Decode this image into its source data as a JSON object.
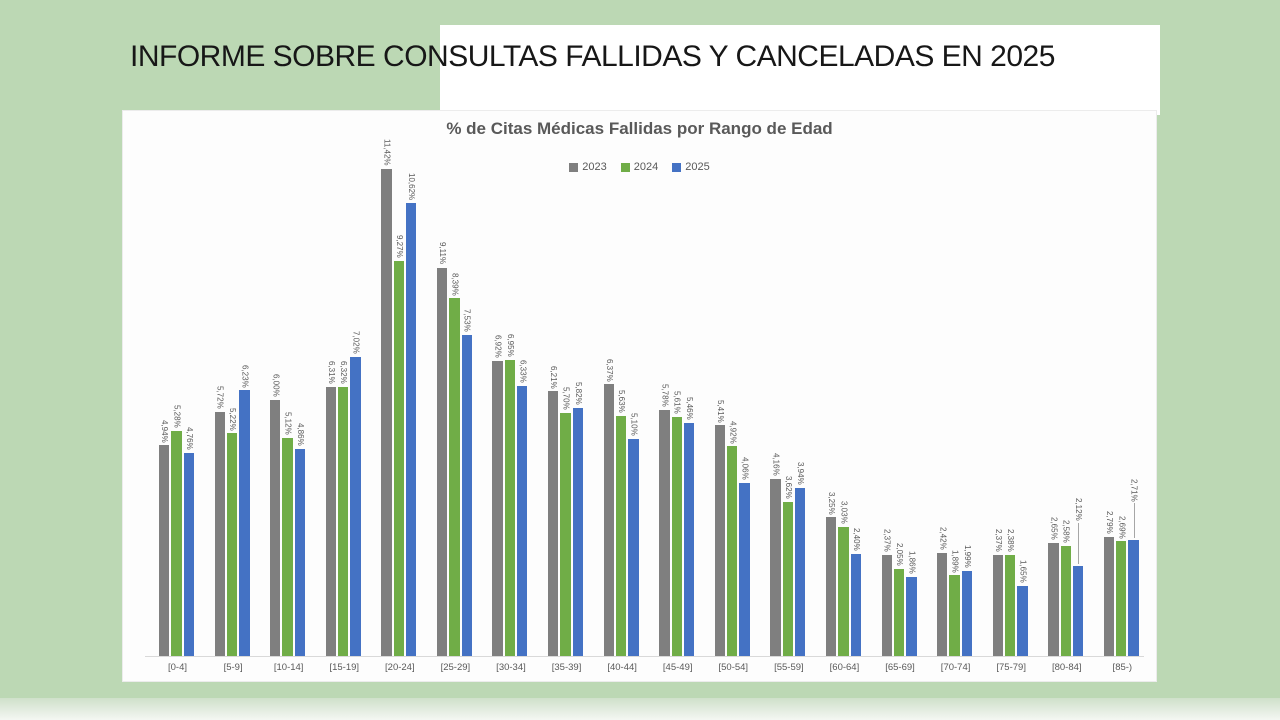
{
  "slide": {
    "title": "INFORME SOBRE CONSULTAS FALLIDAS Y CANCELADAS EN 2025"
  },
  "chart_data": {
    "type": "bar",
    "title": "% de Citas Médicas Fallidas por Rango de Edad",
    "categories": [
      "[0-4]",
      "[5-9]",
      "[10-14]",
      "[15-19]",
      "[20-24]",
      "[25-29]",
      "[30-34]",
      "[35-39]",
      "[40-44]",
      "[45-49]",
      "[50-54]",
      "[55-59]",
      "[60-64]",
      "[65-69]",
      "[70-74]",
      "[75-79]",
      "[80-84]",
      "[85-)"
    ],
    "series": [
      {
        "name": "2023",
        "color": "#7f7f7f",
        "values": [
          4.94,
          5.72,
          6.0,
          6.31,
          11.42,
          9.11,
          6.92,
          6.21,
          6.37,
          5.78,
          5.41,
          4.16,
          3.25,
          2.37,
          2.42,
          2.37,
          2.65,
          2.79
        ],
        "labels": [
          "4,94%",
          "5,72%",
          "6,00%",
          "6,31%",
          "11,42%",
          "9,11%",
          "6,92%",
          "6,21%",
          "6,37%",
          "5,78%",
          "5,41%",
          "4,16%",
          "3,25%",
          "2,37%",
          "2,42%",
          "2,37%",
          "2,65%",
          "2,79%"
        ]
      },
      {
        "name": "2024",
        "color": "#70ad47",
        "values": [
          5.28,
          5.22,
          5.12,
          6.32,
          9.27,
          8.39,
          6.95,
          5.7,
          5.63,
          5.61,
          4.92,
          3.62,
          3.03,
          2.05,
          1.89,
          2.38,
          2.58,
          2.69
        ],
        "labels": [
          "5,28%",
          "5,22%",
          "5,12%",
          "6,32%",
          "9,27%",
          "8,39%",
          "6,95%",
          "5,70%",
          "5,63%",
          "5,61%",
          "4,92%",
          "3,62%",
          "3,03%",
          "2,05%",
          "1,89%",
          "2,38%",
          "2,58%",
          "2,69%"
        ]
      },
      {
        "name": "2025",
        "color": "#4472c4",
        "values": [
          4.76,
          6.23,
          4.86,
          7.02,
          10.62,
          7.53,
          6.33,
          5.82,
          5.1,
          5.46,
          4.06,
          3.94,
          2.4,
          1.86,
          1.99,
          1.65,
          2.12,
          2.71
        ],
        "labels": [
          "4,76%",
          "6,23%",
          "4,86%",
          "7,02%",
          "10,62%",
          "7,53%",
          "6,33%",
          "5,82%",
          "5,10%",
          "5,46%",
          "4,06%",
          "3,94%",
          "2,40%",
          "1,86%",
          "1,99%",
          "1,65%",
          "2,12%",
          "2,71%"
        ]
      }
    ],
    "ylim": [
      0,
      11.42
    ],
    "grid": false,
    "legend_position": "top-center",
    "value_labels": "rotated-vertical",
    "leader_lines": [
      {
        "series": 2,
        "category": 16,
        "lift": 42
      },
      {
        "series": 2,
        "category": 17,
        "lift": 36
      }
    ]
  },
  "colors": {
    "background": "#bcd8b4",
    "panel": "#fdfdfd",
    "text_primary": "#171717",
    "text_chart": "#595959",
    "axis_line": "#d9d9d9"
  }
}
